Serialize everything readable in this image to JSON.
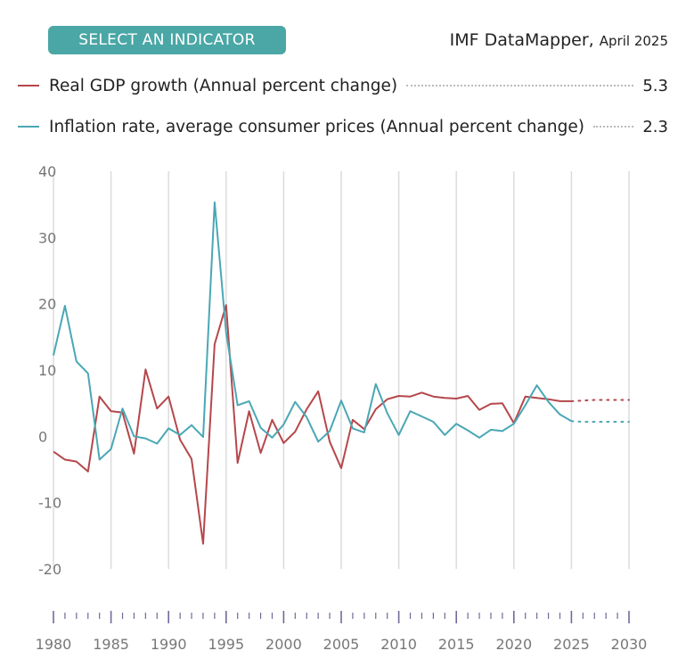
{
  "header": {
    "button_label": "SELECT AN INDICATOR",
    "brand": "IMF DataMapper",
    "edition": "April 2025"
  },
  "legend": [
    {
      "label": "Real GDP growth (Annual percent change)",
      "value": "5.3",
      "color": "#b5474b"
    },
    {
      "label": "Inflation rate, average consumer prices (Annual percent change)",
      "value": "2.3",
      "color": "#4aa7b5"
    }
  ],
  "chart_data": {
    "type": "line",
    "xlim": [
      1980,
      2030
    ],
    "ylim": [
      -20,
      40
    ],
    "y_ticks": [
      40,
      30,
      20,
      10,
      0,
      -10,
      -20
    ],
    "x_ticks": [
      1980,
      1985,
      1990,
      1995,
      2000,
      2005,
      2010,
      2015,
      2020,
      2025,
      2030
    ],
    "grid": "vertical",
    "series": [
      {
        "name": "Real GDP growth (Annual percent change)",
        "color": "#b5474b",
        "x": [
          1980,
          1981,
          1982,
          1983,
          1984,
          1985,
          1986,
          1987,
          1988,
          1989,
          1990,
          1991,
          1992,
          1993,
          1994,
          1995,
          1996,
          1997,
          1998,
          1999,
          2000,
          2001,
          2002,
          2003,
          2004,
          2005,
          2006,
          2007,
          2008,
          2009,
          2010,
          2011,
          2012,
          2013,
          2014,
          2015,
          2016,
          2017,
          2018,
          2019,
          2020,
          2021,
          2022,
          2023,
          2024,
          2025
        ],
        "values": [
          -2.3,
          -3.5,
          -3.8,
          -5.3,
          6.0,
          3.8,
          3.6,
          -2.6,
          10.1,
          4.2,
          6.0,
          -0.5,
          -3.4,
          -16.2,
          13.9,
          19.8,
          -4.0,
          3.8,
          -2.5,
          2.5,
          -1.0,
          0.7,
          4.1,
          6.8,
          -0.8,
          -4.8,
          2.5,
          1.1,
          4.1,
          5.6,
          6.1,
          6.0,
          6.6,
          6.0,
          5.8,
          5.7,
          6.1,
          4.0,
          4.9,
          5.0,
          2.0,
          6.0,
          5.8,
          5.6,
          5.3,
          5.3
        ],
        "projection_x": [
          2025,
          2026,
          2027,
          2028,
          2029,
          2030
        ],
        "projection_values": [
          5.3,
          5.4,
          5.5,
          5.5,
          5.5,
          5.5
        ]
      },
      {
        "name": "Inflation rate, average consumer prices (Annual percent change)",
        "color": "#4aa7b5",
        "x": [
          1980,
          1981,
          1982,
          1983,
          1984,
          1985,
          1986,
          1987,
          1988,
          1989,
          1990,
          1991,
          1992,
          1993,
          1994,
          1995,
          1996,
          1997,
          1998,
          1999,
          2000,
          2001,
          2002,
          2003,
          2004,
          2005,
          2006,
          2007,
          2008,
          2009,
          2010,
          2011,
          2012,
          2013,
          2014,
          2015,
          2016,
          2017,
          2018,
          2019,
          2020,
          2021,
          2022,
          2023,
          2024,
          2025
        ],
        "values": [
          12.2,
          19.7,
          11.3,
          9.5,
          -3.5,
          -1.9,
          4.2,
          0.0,
          -0.3,
          -1.1,
          1.2,
          0.2,
          1.7,
          -0.1,
          35.3,
          15.7,
          4.7,
          5.3,
          1.3,
          -0.2,
          1.8,
          5.2,
          2.9,
          -0.8,
          0.8,
          5.4,
          1.2,
          0.6,
          7.9,
          3.5,
          0.2,
          3.8,
          3.0,
          2.2,
          0.2,
          1.9,
          0.9,
          -0.2,
          1.0,
          0.8,
          1.9,
          4.7,
          7.7,
          5.2,
          3.3,
          2.3
        ],
        "projection_x": [
          2025,
          2026,
          2027,
          2028,
          2029,
          2030
        ],
        "projection_values": [
          2.3,
          2.2,
          2.2,
          2.2,
          2.2,
          2.2
        ]
      }
    ]
  }
}
